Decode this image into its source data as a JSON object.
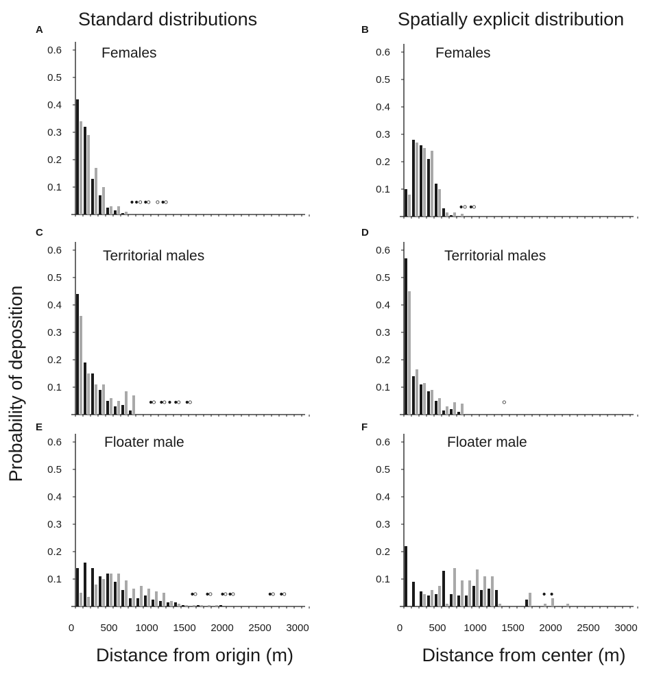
{
  "column_titles": [
    "Standard distributions",
    "Spatially explicit distribution"
  ],
  "ylabel": "Probability of deposition",
  "xlabels": [
    "Distance from origin (m)",
    "Distance from center (m)"
  ],
  "colors": {
    "series_a": "#1a1a1a",
    "series_b": "#a9a9a9",
    "axis": "#1a1a1a"
  },
  "chart_data": [
    {
      "type": "bar",
      "letter": "A",
      "title": "Females",
      "series": [
        {
          "values": [
            0.42,
            0.32,
            0.13,
            0.07,
            0.025,
            0.015,
            0.005,
            0,
            0,
            0,
            0,
            0,
            0,
            0,
            0,
            0,
            0,
            0,
            0,
            0,
            0,
            0,
            0,
            0,
            0,
            0,
            0,
            0,
            0,
            0,
            0
          ]
        },
        {
          "values": [
            0.34,
            0.29,
            0.17,
            0.1,
            0.03,
            0.03,
            0.01,
            0,
            0,
            0,
            0,
            0,
            0,
            0,
            0,
            0,
            0,
            0,
            0,
            0,
            0,
            0,
            0,
            0,
            0,
            0,
            0,
            0,
            0,
            0,
            0
          ]
        }
      ],
      "markers": [
        [
          750,
          "filled"
        ],
        [
          810,
          "filled"
        ],
        [
          860,
          "open"
        ],
        [
          930,
          "filled"
        ],
        [
          970,
          "open"
        ],
        [
          1090,
          "open"
        ],
        [
          1160,
          "filled"
        ],
        [
          1200,
          "open"
        ]
      ],
      "marker_y": 0.045,
      "yticks": [
        "0.1",
        "0.2",
        "0.3",
        "0.4",
        "0.5",
        "0.6"
      ],
      "xticks": [],
      "ylim": [
        0,
        0.6
      ],
      "xlim": [
        0,
        3100
      ],
      "bin_width": 100
    },
    {
      "type": "bar",
      "letter": "B",
      "title": "Females",
      "series": [
        {
          "values": [
            0.1,
            0.28,
            0.26,
            0.21,
            0.12,
            0.03,
            0.005,
            0,
            0,
            0,
            0,
            0,
            0,
            0,
            0,
            0,
            0,
            0,
            0,
            0,
            0,
            0,
            0,
            0,
            0,
            0,
            0,
            0,
            0,
            0,
            0
          ]
        },
        {
          "values": [
            0.08,
            0.27,
            0.25,
            0.24,
            0.1,
            0.015,
            0.015,
            0.01,
            0,
            0,
            0,
            0,
            0,
            0,
            0,
            0,
            0,
            0,
            0,
            0,
            0,
            0,
            0,
            0,
            0,
            0,
            0,
            0,
            0,
            0,
            0
          ]
        }
      ],
      "markers": [
        [
          760,
          "filled"
        ],
        [
          810,
          "open"
        ],
        [
          890,
          "filled"
        ],
        [
          930,
          "open"
        ]
      ],
      "marker_y": 0.035,
      "yticks": [
        "0.1",
        "0.2",
        "0.3",
        "0.4",
        "0.5",
        "0.6"
      ],
      "xticks": [],
      "ylim": [
        0,
        0.6
      ],
      "xlim": [
        0,
        3100
      ],
      "bin_width": 100
    },
    {
      "type": "bar",
      "letter": "C",
      "title": "Territorial males",
      "series": [
        {
          "values": [
            0.44,
            0.19,
            0.15,
            0.09,
            0.05,
            0.03,
            0.035,
            0.015,
            0,
            0,
            0,
            0,
            0,
            0,
            0,
            0,
            0,
            0,
            0,
            0,
            0,
            0,
            0,
            0,
            0,
            0,
            0,
            0,
            0,
            0,
            0
          ]
        },
        {
          "values": [
            0.36,
            0.15,
            0.11,
            0.11,
            0.06,
            0.05,
            0.085,
            0.07,
            0,
            0,
            0,
            0,
            0,
            0,
            0,
            0,
            0,
            0,
            0,
            0,
            0,
            0,
            0,
            0,
            0,
            0,
            0,
            0,
            0,
            0,
            0
          ]
        }
      ],
      "markers": [
        [
          1000,
          "filled"
        ],
        [
          1040,
          "open"
        ],
        [
          1140,
          "filled"
        ],
        [
          1180,
          "open"
        ],
        [
          1250,
          "filled"
        ],
        [
          1330,
          "filled"
        ],
        [
          1370,
          "open"
        ],
        [
          1480,
          "filled"
        ],
        [
          1520,
          "open"
        ]
      ],
      "marker_y": 0.045,
      "yticks": [
        "0.1",
        "0.2",
        "0.3",
        "0.4",
        "0.5",
        "0.6"
      ],
      "xticks": [],
      "ylim": [
        0,
        0.6
      ],
      "xlim": [
        0,
        3100
      ],
      "bin_width": 100
    },
    {
      "type": "bar",
      "letter": "D",
      "title": "Territorial males",
      "series": [
        {
          "values": [
            0.57,
            0.14,
            0.11,
            0.085,
            0.05,
            0.015,
            0.02,
            0.01,
            0,
            0,
            0,
            0,
            0,
            0,
            0,
            0,
            0,
            0,
            0,
            0,
            0,
            0,
            0,
            0,
            0,
            0,
            0,
            0,
            0,
            0,
            0
          ]
        },
        {
          "values": [
            0.45,
            0.165,
            0.115,
            0.09,
            0.06,
            0.03,
            0.045,
            0.04,
            0,
            0,
            0,
            0,
            0,
            0,
            0,
            0,
            0,
            0,
            0,
            0,
            0,
            0,
            0,
            0,
            0,
            0,
            0,
            0,
            0,
            0,
            0
          ]
        }
      ],
      "markers": [
        [
          1330,
          "open"
        ]
      ],
      "marker_y": 0.045,
      "yticks": [
        "0.1",
        "0.2",
        "0.3",
        "0.4",
        "0.5",
        "0.6"
      ],
      "xticks": [],
      "ylim": [
        0,
        0.6
      ],
      "xlim": [
        0,
        3100
      ],
      "bin_width": 100
    },
    {
      "type": "bar",
      "letter": "E",
      "title": "Floater male",
      "series": [
        {
          "values": [
            0.14,
            0.16,
            0.14,
            0.11,
            0.12,
            0.09,
            0.06,
            0.03,
            0.03,
            0.04,
            0.025,
            0.02,
            0.015,
            0.015,
            0.005,
            0,
            0.005,
            0,
            0,
            0.005,
            0,
            0,
            0,
            0,
            0,
            0,
            0,
            0,
            0,
            0,
            0
          ]
        },
        {
          "values": [
            0.05,
            0.035,
            0.08,
            0.1,
            0.12,
            0.12,
            0.095,
            0.065,
            0.075,
            0.065,
            0.055,
            0.05,
            0.02,
            0.01,
            0.005,
            0.005,
            0.005,
            0.005,
            0.005,
            0,
            0,
            0,
            0,
            0,
            0,
            0,
            0,
            0,
            0,
            0,
            0
          ]
        }
      ],
      "markers": [
        [
          1550,
          "filled"
        ],
        [
          1590,
          "open"
        ],
        [
          1750,
          "filled"
        ],
        [
          1790,
          "open"
        ],
        [
          1950,
          "filled"
        ],
        [
          1990,
          "open"
        ],
        [
          2050,
          "filled"
        ],
        [
          2090,
          "open"
        ],
        [
          2580,
          "filled"
        ],
        [
          2620,
          "open"
        ],
        [
          2730,
          "filled"
        ],
        [
          2770,
          "open"
        ]
      ],
      "marker_y": 0.045,
      "yticks": [
        "0.1",
        "0.2",
        "0.3",
        "0.4",
        "0.5",
        "0.6"
      ],
      "xticks": [
        "0",
        "500",
        "1000",
        "1500",
        "2000",
        "2500",
        "3000"
      ],
      "ylim": [
        0,
        0.6
      ],
      "xlim": [
        0,
        3100
      ],
      "bin_width": 100
    },
    {
      "type": "bar",
      "letter": "F",
      "title": "Floater male",
      "series": [
        {
          "values": [
            0.22,
            0.09,
            0.055,
            0.04,
            0.045,
            0.13,
            0.045,
            0.04,
            0.04,
            0.075,
            0.06,
            0.065,
            0.06,
            0,
            0,
            0,
            0.025,
            0,
            0,
            0,
            0,
            0,
            0,
            0,
            0,
            0,
            0,
            0,
            0,
            0,
            0
          ]
        },
        {
          "values": [
            0,
            0,
            0.045,
            0.06,
            0.075,
            0.01,
            0.14,
            0.095,
            0.095,
            0.135,
            0.11,
            0.11,
            0.01,
            0,
            0,
            0,
            0.05,
            0,
            0.01,
            0.03,
            0,
            0.01,
            0,
            0,
            0,
            0,
            0,
            0,
            0,
            0,
            0
          ]
        }
      ],
      "markers": [
        [
          1860,
          "filled"
        ],
        [
          1960,
          "filled"
        ]
      ],
      "marker_y": 0.045,
      "yticks": [
        "0.1",
        "0.2",
        "0.3",
        "0.4",
        "0.5",
        "0.6"
      ],
      "xticks": [
        "0",
        "500",
        "1000",
        "1500",
        "2000",
        "2500",
        "3000"
      ],
      "ylim": [
        0,
        0.6
      ],
      "xlim": [
        0,
        3100
      ],
      "bin_width": 100
    }
  ]
}
